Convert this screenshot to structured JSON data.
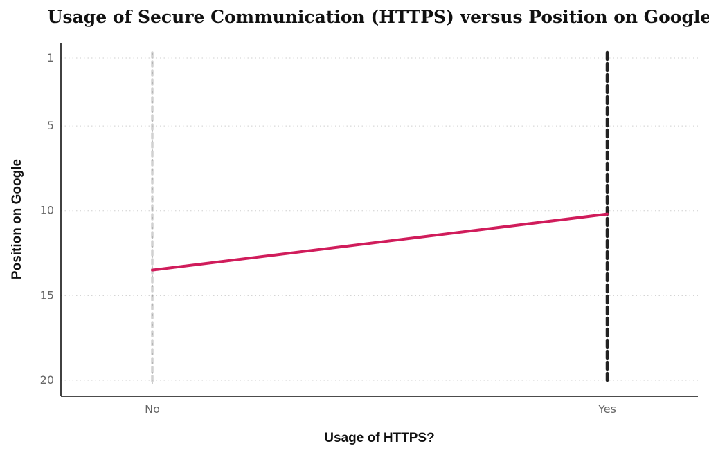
{
  "chart_data": {
    "type": "line",
    "title": "Usage of Secure Communication (HTTPS) versus Position on Google",
    "xlabel": "Usage of HTTPS?",
    "ylabel": "Position on Google",
    "categories": [
      "No",
      "Yes"
    ],
    "y_ticks": [
      1,
      5,
      10,
      15,
      20
    ],
    "ylim": [
      1,
      20
    ],
    "y_reversed": true,
    "grid": "horizontal-dotted",
    "jitter_strips": [
      {
        "category": "No",
        "y_from": 1,
        "y_to": 20,
        "color": "#9a9a9a",
        "opacity": "faint"
      },
      {
        "category": "Yes",
        "y_from": 1,
        "y_to": 20,
        "color": "#222222",
        "opacity": "dense"
      }
    ],
    "series": [
      {
        "values": [
          13.5,
          10.2
        ],
        "color": "#d01c5b"
      }
    ]
  }
}
